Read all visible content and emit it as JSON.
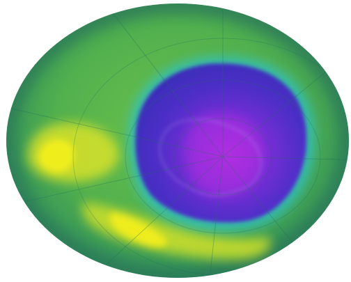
{
  "image": {
    "subject": "ozone-hole-over-antarctica",
    "colors": {
      "background": "#ffffff",
      "globe_edge": "#2f7f5a",
      "ozone_high_yellow": "#f2ee1e",
      "ozone_mid_green": "#66b846",
      "ozone_low_cyan": "#2fc1c8",
      "ozone_hole_blue": "#3f2fc0",
      "ozone_hole_core_purple": "#8a2fd8",
      "gridline": "#1e6e5a"
    }
  }
}
